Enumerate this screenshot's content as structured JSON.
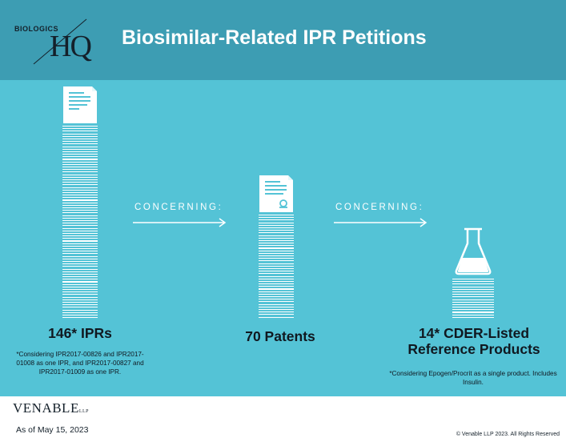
{
  "header": {
    "logo_small": "BIOLOGICS",
    "logo_hq": "HQ",
    "title": "Biosimilar-Related IPR Petitions"
  },
  "flow": {
    "concerning_1": "CONCERNING:",
    "concerning_2": "CONCERNING:"
  },
  "columns": [
    {
      "label": "146* IPRs",
      "note": "*Considering IPR2017-00826 and IPR2017-01008 as one IPR, and IPR2017-00827 and IPR2017-01009 as one IPR.",
      "icon": "document-stack-icon"
    },
    {
      "label": "70 Patents",
      "note": "",
      "icon": "patent-document-icon"
    },
    {
      "label": "14* CDER-Listed Reference Products",
      "note": "*Considering Epogen/Procrit as a single product. Includes Insulin.",
      "icon": "flask-icon"
    }
  ],
  "footer": {
    "brand": "VENABLE",
    "brand_suffix": "LLP",
    "as_of": "As of May 15, 2023",
    "copyright": "© Venable LLP 2023. All Rights Reserved"
  },
  "colors": {
    "header_bg": "#3d9db3",
    "panel_bg": "#54c3d6",
    "text_dark": "#101820",
    "white": "#ffffff"
  }
}
